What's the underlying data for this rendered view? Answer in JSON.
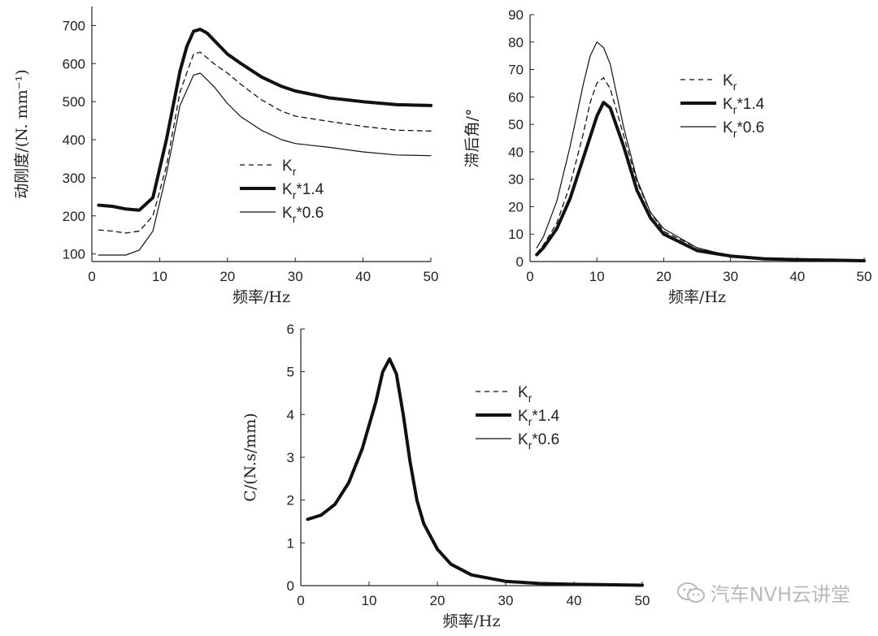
{
  "chart_data": [
    {
      "type": "line",
      "xlabel": "频率/Hz",
      "ylabel": "动刚度/(N. mm⁻¹)",
      "xlim": [
        0,
        50
      ],
      "ylim": [
        80,
        750
      ],
      "xticks": [
        0,
        10,
        20,
        30,
        40,
        50
      ],
      "yticks": [
        100,
        200,
        300,
        400,
        500,
        600,
        700
      ],
      "legend_position": "center",
      "series": [
        {
          "name": "Kr",
          "style": "dashed",
          "x": [
            1,
            3,
            5,
            7,
            9,
            11,
            13,
            15,
            16,
            18,
            20,
            22,
            25,
            28,
            30,
            35,
            40,
            45,
            50
          ],
          "y": [
            163,
            160,
            155,
            160,
            200,
            330,
            525,
            625,
            630,
            600,
            575,
            545,
            505,
            475,
            462,
            448,
            435,
            425,
            423
          ]
        },
        {
          "name": "Kr*1.4",
          "style": "thick",
          "x": [
            1,
            3,
            5,
            7,
            9,
            11,
            13,
            14,
            15,
            16,
            17,
            20,
            22,
            25,
            28,
            30,
            35,
            40,
            45,
            50
          ],
          "y": [
            228,
            225,
            218,
            215,
            248,
            400,
            580,
            645,
            685,
            690,
            680,
            625,
            600,
            565,
            540,
            528,
            510,
            500,
            492,
            490
          ]
        },
        {
          "name": "Kr*0.6",
          "style": "thin",
          "x": [
            1,
            3,
            5,
            7,
            9,
            11,
            13,
            15,
            16,
            18,
            20,
            22,
            25,
            28,
            30,
            35,
            40,
            45,
            50
          ],
          "y": [
            97,
            97,
            97,
            110,
            160,
            310,
            490,
            570,
            575,
            540,
            495,
            460,
            425,
            400,
            390,
            380,
            368,
            360,
            358
          ]
        }
      ]
    },
    {
      "type": "line",
      "xlabel": "频率/Hz",
      "ylabel": "滞后角/°",
      "xlim": [
        0,
        50
      ],
      "ylim": [
        0,
        90
      ],
      "xticks": [
        0,
        10,
        20,
        30,
        40,
        50
      ],
      "yticks": [
        0,
        10,
        20,
        30,
        40,
        50,
        60,
        70,
        80,
        90
      ],
      "legend_position": "top-right",
      "series": [
        {
          "name": "Kr",
          "style": "dashed",
          "x": [
            1,
            2,
            4,
            6,
            8,
            9,
            10,
            11,
            12,
            14,
            16,
            18,
            20,
            25,
            30,
            35,
            40,
            45,
            50
          ],
          "y": [
            3,
            6,
            14,
            28,
            47,
            58,
            65,
            67,
            63,
            46,
            29,
            18,
            11,
            5,
            2,
            1,
            0.5,
            0.3,
            0.2
          ]
        },
        {
          "name": "Kr*1.4",
          "style": "thick",
          "x": [
            1,
            2,
            4,
            6,
            8,
            10,
            11,
            12,
            14,
            16,
            18,
            20,
            25,
            30,
            35,
            40,
            45,
            50
          ],
          "y": [
            2.5,
            5,
            12,
            23,
            38,
            53,
            58,
            56,
            42,
            26,
            16,
            10,
            4,
            2,
            1,
            0.7,
            0.5,
            0.3
          ]
        },
        {
          "name": "Kr*0.6",
          "style": "thin",
          "x": [
            1,
            2,
            4,
            6,
            8,
            9,
            10,
            11,
            12,
            14,
            16,
            18,
            20,
            25,
            30,
            35,
            40,
            45,
            50
          ],
          "y": [
            5,
            9,
            22,
            42,
            65,
            75,
            80,
            78,
            72,
            49,
            30,
            18,
            12,
            5,
            2,
            1,
            0.5,
            0.3,
            0.2
          ]
        }
      ]
    },
    {
      "type": "line",
      "xlabel": "频率/Hz",
      "ylabel": "C/(N.s/mm)",
      "xlim": [
        0,
        50
      ],
      "ylim": [
        0,
        6
      ],
      "xticks": [
        0,
        10,
        20,
        30,
        40,
        50
      ],
      "yticks": [
        0,
        1,
        2,
        3,
        4,
        5,
        6
      ],
      "legend_position": "right",
      "series": [
        {
          "name": "Kr",
          "style": "dashed",
          "x": [
            1,
            3,
            5,
            7,
            9,
            11,
            12,
            13,
            14,
            15,
            16,
            17,
            18,
            20,
            22,
            25,
            30,
            35,
            40,
            45,
            50
          ],
          "y": [
            1.55,
            1.65,
            1.9,
            2.4,
            3.2,
            4.3,
            5.0,
            5.3,
            4.95,
            4.0,
            2.9,
            2.0,
            1.45,
            0.85,
            0.5,
            0.25,
            0.1,
            0.05,
            0.03,
            0.02,
            0.01
          ]
        },
        {
          "name": "Kr*1.4",
          "style": "thick",
          "x": [
            1,
            3,
            5,
            7,
            9,
            11,
            12,
            13,
            14,
            15,
            16,
            17,
            18,
            20,
            22,
            25,
            30,
            35,
            40,
            45,
            50
          ],
          "y": [
            1.55,
            1.65,
            1.9,
            2.4,
            3.2,
            4.3,
            5.0,
            5.3,
            4.95,
            4.0,
            2.9,
            2.0,
            1.45,
            0.85,
            0.5,
            0.25,
            0.1,
            0.05,
            0.03,
            0.02,
            0.01
          ]
        },
        {
          "name": "Kr*0.6",
          "style": "thin",
          "x": [
            1,
            3,
            5,
            7,
            9,
            11,
            12,
            13,
            14,
            15,
            16,
            17,
            18,
            20,
            22,
            25,
            30,
            35,
            40,
            45,
            50
          ],
          "y": [
            1.55,
            1.65,
            1.9,
            2.4,
            3.2,
            4.3,
            5.0,
            5.3,
            4.95,
            4.0,
            2.9,
            2.0,
            1.45,
            0.85,
            0.5,
            0.25,
            0.1,
            0.05,
            0.03,
            0.02,
            0.01
          ]
        }
      ]
    }
  ],
  "watermark": {
    "text": "汽车NVH云讲堂",
    "icon": "wechat-icon"
  }
}
